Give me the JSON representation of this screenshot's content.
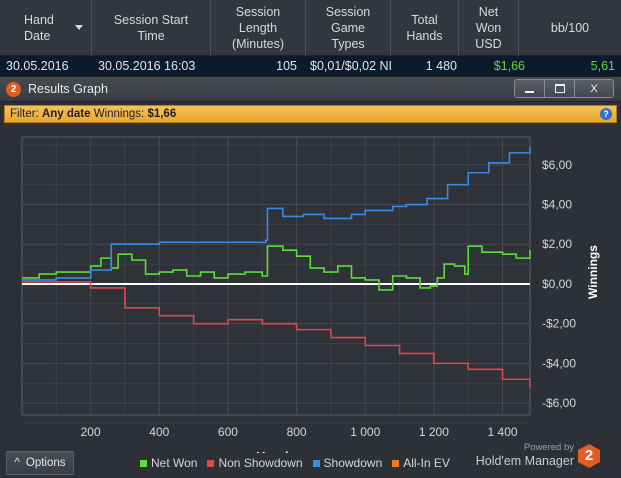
{
  "table": {
    "columns": [
      {
        "label": "Hand\nDate",
        "sorted": true
      },
      {
        "label": "Session Start\nTime"
      },
      {
        "label": "Session\nLength\n(Minutes)"
      },
      {
        "label": "Session\nGame\nTypes"
      },
      {
        "label": "Total\nHands"
      },
      {
        "label": "Net\nWon\nUSD"
      },
      {
        "label": "bb/100"
      }
    ],
    "row": {
      "hand_date": "30.05.2016",
      "start_time": "30.05.2016 16:03",
      "length": "105",
      "game_types": "$0,01/$0,02 NI",
      "total_hands": "1 480",
      "net_won": "$1,66",
      "bb100": "5,61"
    }
  },
  "window": {
    "icon_label": "2",
    "title": "Results Graph",
    "buttons": {
      "close": "X"
    },
    "filter": {
      "prefix": "Filter:",
      "date": "Any date",
      "winnings_label": "Winnings:",
      "winnings": "$1,66"
    },
    "help": "?"
  },
  "bottom": {
    "options_label": "Options",
    "options_arrow": "^",
    "powered_by": "Powered by",
    "brand": "Hold'em Manager",
    "brand_num": "2"
  },
  "colors": {
    "net_won": "#5ddc3a",
    "non_showdown": "#e04848",
    "showdown": "#3a8be0",
    "allin_ev": "#f07c1a",
    "positive": "#5ddc3a"
  },
  "chart_data": {
    "type": "line",
    "xlabel": "Hands",
    "ylabel": "Winnings",
    "xlim": [
      0,
      1480
    ],
    "ylim": [
      -6.6,
      7.4
    ],
    "xticks": [
      200,
      400,
      600,
      800,
      1000,
      1200,
      1400
    ],
    "xtick_labels": [
      "200",
      "400",
      "600",
      "800",
      "1 000",
      "1 200",
      "1 400"
    ],
    "yticks": [
      6,
      4,
      2,
      0,
      -2,
      -4,
      -6
    ],
    "ytick_labels": [
      "$6,00",
      "$4,00",
      "$2,00",
      "$0,00",
      "-$2,00",
      "-$4,00",
      "-$6,00"
    ],
    "grid": true,
    "legend": "bottom",
    "series": [
      {
        "name": "Net Won",
        "color": "#5ddc3a",
        "points": [
          [
            0,
            0.3
          ],
          [
            50,
            0.5
          ],
          [
            100,
            0.6
          ],
          [
            200,
            0.9
          ],
          [
            230,
            1.3
          ],
          [
            260,
            0.8
          ],
          [
            280,
            1.5
          ],
          [
            320,
            1.2
          ],
          [
            360,
            0.5
          ],
          [
            400,
            0.6
          ],
          [
            440,
            0.7
          ],
          [
            480,
            0.4
          ],
          [
            520,
            0.6
          ],
          [
            560,
            0.3
          ],
          [
            600,
            0.5
          ],
          [
            650,
            0.6
          ],
          [
            700,
            0.4
          ],
          [
            715,
            1.9
          ],
          [
            760,
            1.7
          ],
          [
            800,
            1.4
          ],
          [
            840,
            0.8
          ],
          [
            880,
            0.6
          ],
          [
            920,
            0.9
          ],
          [
            960,
            0.3
          ],
          [
            1000,
            0.2
          ],
          [
            1040,
            -0.3
          ],
          [
            1080,
            0.4
          ],
          [
            1120,
            0.3
          ],
          [
            1160,
            -0.2
          ],
          [
            1190,
            -0.1
          ],
          [
            1210,
            0.3
          ],
          [
            1230,
            1.0
          ],
          [
            1260,
            0.9
          ],
          [
            1290,
            0.5
          ],
          [
            1300,
            1.9
          ],
          [
            1340,
            1.6
          ],
          [
            1400,
            1.5
          ],
          [
            1440,
            1.3
          ],
          [
            1480,
            1.7
          ]
        ]
      },
      {
        "name": "Non Showdown",
        "color": "#e04848",
        "points": [
          [
            0,
            0.1
          ],
          [
            100,
            0.1
          ],
          [
            200,
            -0.2
          ],
          [
            300,
            -1.2
          ],
          [
            400,
            -1.6
          ],
          [
            500,
            -2.0
          ],
          [
            600,
            -1.8
          ],
          [
            700,
            -2.0
          ],
          [
            800,
            -2.3
          ],
          [
            900,
            -2.7
          ],
          [
            1000,
            -3.1
          ],
          [
            1100,
            -3.5
          ],
          [
            1200,
            -4.0
          ],
          [
            1300,
            -4.3
          ],
          [
            1400,
            -4.8
          ],
          [
            1480,
            -5.2
          ]
        ]
      },
      {
        "name": "Showdown",
        "color": "#3a8be0",
        "points": [
          [
            0,
            0.2
          ],
          [
            100,
            0.3
          ],
          [
            200,
            0.7
          ],
          [
            260,
            2.0
          ],
          [
            400,
            2.1
          ],
          [
            600,
            2.1
          ],
          [
            710,
            2.2
          ],
          [
            715,
            3.8
          ],
          [
            760,
            3.4
          ],
          [
            820,
            3.5
          ],
          [
            880,
            3.3
          ],
          [
            960,
            3.5
          ],
          [
            1000,
            3.7
          ],
          [
            1080,
            3.9
          ],
          [
            1120,
            4.0
          ],
          [
            1180,
            4.3
          ],
          [
            1240,
            5.0
          ],
          [
            1300,
            5.6
          ],
          [
            1360,
            6.1
          ],
          [
            1420,
            6.6
          ],
          [
            1480,
            6.9
          ]
        ]
      },
      {
        "name": "All-In EV",
        "color": "#f07c1a",
        "points": []
      }
    ]
  }
}
